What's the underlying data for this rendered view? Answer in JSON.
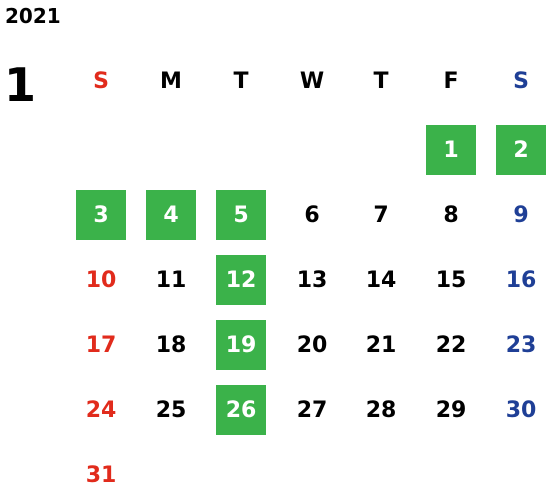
{
  "year": "2021",
  "month": "1",
  "weekdays": [
    "S",
    "M",
    "T",
    "W",
    "T",
    "F",
    "S"
  ],
  "colors": {
    "highlight": "#3bb24a",
    "sunday": "#e12b1c",
    "saturday": "#1f3f96",
    "weekday": "#000000"
  },
  "calendar": {
    "first_weekday_index": 5,
    "days_in_month": 31,
    "highlighted_days": [
      1,
      2,
      3,
      4,
      5,
      12,
      19,
      26
    ]
  },
  "days": [
    "1",
    "2",
    "3",
    "4",
    "5",
    "6",
    "7",
    "8",
    "9",
    "10",
    "11",
    "12",
    "13",
    "14",
    "15",
    "16",
    "17",
    "18",
    "19",
    "20",
    "21",
    "22",
    "23",
    "24",
    "25",
    "26",
    "27",
    "28",
    "29",
    "30",
    "31"
  ]
}
